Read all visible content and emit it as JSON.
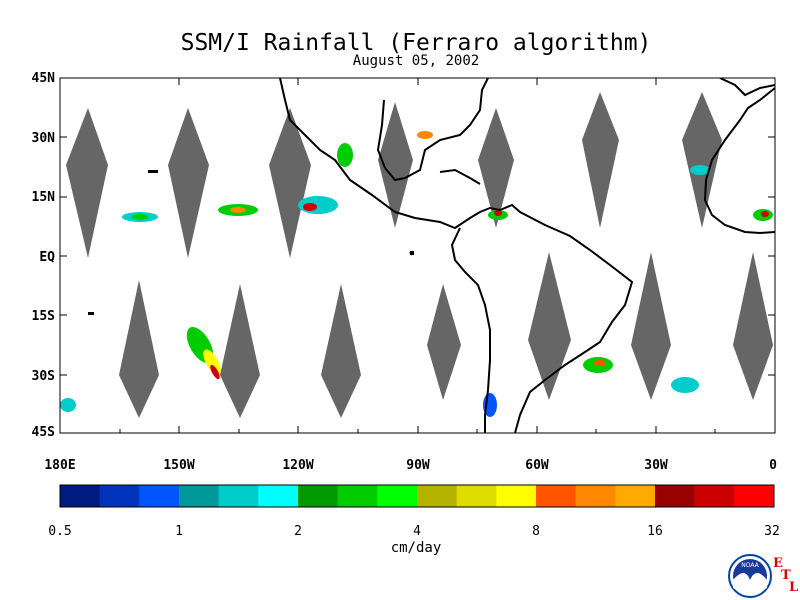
{
  "title": "SSM/I Rainfall (Ferraro algorithm)",
  "subtitle": "August 05, 2002",
  "lat_labels": [
    "45N",
    "30N",
    "15N",
    "EQ",
    "15S",
    "30S",
    "45S"
  ],
  "lon_labels": [
    "180E",
    "150W",
    "120W",
    "90W",
    "60W",
    "30W",
    "0"
  ],
  "colorbar": {
    "labels": [
      "0.5",
      "1",
      "2",
      "4",
      "8",
      "16",
      "32"
    ],
    "colors": [
      "#001a80",
      "#0033bb",
      "#0055ff",
      "#009999",
      "#00cccc",
      "#00ffff",
      "#009900",
      "#00cc00",
      "#00ff00",
      "#b3b300",
      "#dddd00",
      "#ffff00",
      "#ff5500",
      "#ff8800",
      "#ffaa00",
      "#990000",
      "#cc0000",
      "#ff0000"
    ],
    "unit": "cm/day"
  },
  "logo": {
    "noaa_text": "NOAA",
    "etl_letters": [
      "E",
      "T",
      "L"
    ]
  }
}
